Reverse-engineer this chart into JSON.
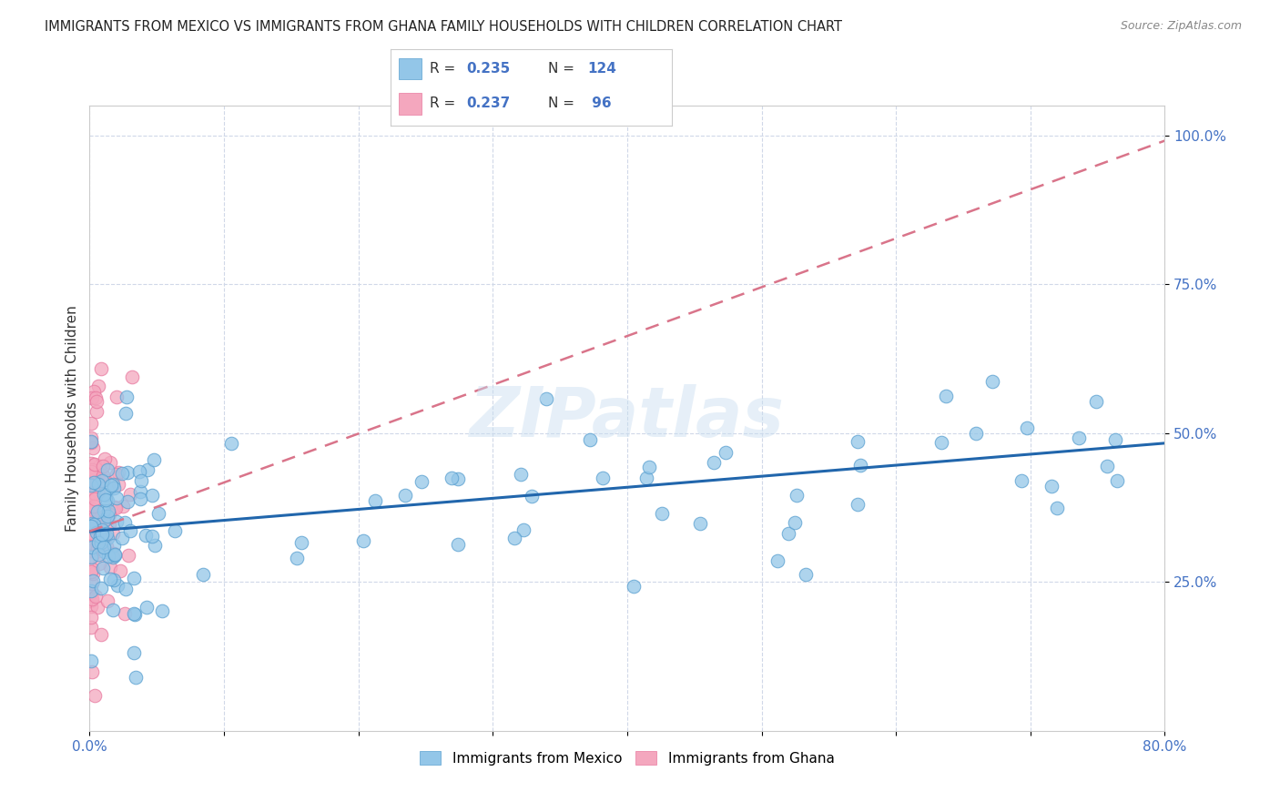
{
  "title": "IMMIGRANTS FROM MEXICO VS IMMIGRANTS FROM GHANA FAMILY HOUSEHOLDS WITH CHILDREN CORRELATION CHART",
  "source": "Source: ZipAtlas.com",
  "ylabel": "Family Households with Children",
  "xlim": [
    0.0,
    0.8
  ],
  "ylim": [
    0.0,
    1.05
  ],
  "mexico_color": "#93c6e8",
  "mexico_edge_color": "#5aa0d0",
  "ghana_color": "#f4a7be",
  "ghana_edge_color": "#e87aa0",
  "mexico_line_color": "#2166ac",
  "ghana_line_color": "#d9748a",
  "mexico_R": 0.235,
  "mexico_N": 124,
  "ghana_R": 0.237,
  "ghana_N": 96,
  "watermark": "ZIPatlas",
  "background_color": "#ffffff",
  "grid_color": "#d0d8e8",
  "title_color": "#222222",
  "source_color": "#888888",
  "axis_label_color": "#4472c4",
  "ylabel_color": "#333333",
  "legend_R_color": "#333333",
  "legend_N_color": "#4472c4",
  "mexico_line_intercept": 0.335,
  "mexico_line_slope": 0.185,
  "ghana_line_intercept": 0.335,
  "ghana_line_slope": 0.82
}
